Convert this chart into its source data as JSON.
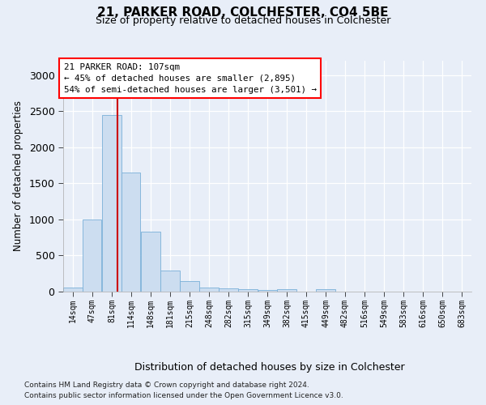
{
  "title1": "21, PARKER ROAD, COLCHESTER, CO4 5BE",
  "title2": "Size of property relative to detached houses in Colchester",
  "xlabel": "Distribution of detached houses by size in Colchester",
  "ylabel": "Number of detached properties",
  "footnote1": "Contains HM Land Registry data © Crown copyright and database right 2024.",
  "footnote2": "Contains public sector information licensed under the Open Government Licence v3.0.",
  "annotation_line1": "21 PARKER ROAD: 107sqm",
  "annotation_line2": "← 45% of detached houses are smaller (2,895)",
  "annotation_line3": "54% of semi-detached houses are larger (3,501) →",
  "bar_fill_color": "#ccddf0",
  "bar_edge_color": "#7ab0d8",
  "redline_color": "#cc0000",
  "property_size_sqm": 107,
  "bin_starts": [
    14,
    47,
    81,
    114,
    148,
    181,
    215,
    248,
    282,
    315,
    349,
    382,
    415,
    449,
    482,
    516,
    549,
    583,
    616,
    650,
    683
  ],
  "bin_width": 33,
  "bar_heights": [
    60,
    1000,
    2450,
    1650,
    830,
    290,
    145,
    55,
    40,
    30,
    20,
    30,
    0,
    30,
    0,
    0,
    0,
    0,
    0,
    0,
    0
  ],
  "ylim": [
    0,
    3200
  ],
  "yticks": [
    0,
    500,
    1000,
    1500,
    2000,
    2500,
    3000
  ],
  "bg_color": "#e8eef8",
  "grid_color": "#d0d8e8"
}
